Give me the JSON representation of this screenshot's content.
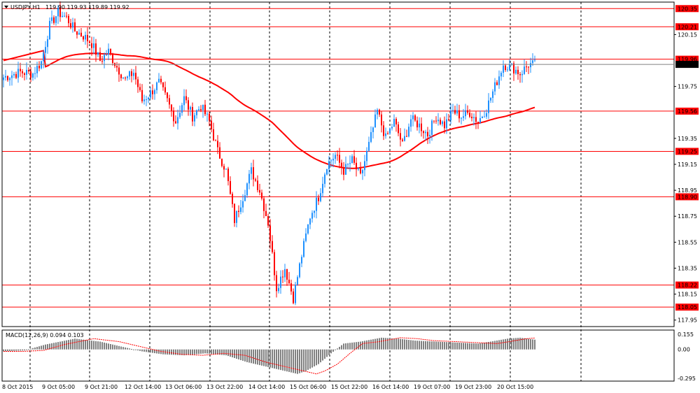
{
  "chart_data": {
    "type": "candlestick",
    "symbol_label": "USDJPY,H1",
    "ohlc_header": "119.90 119.93 119.89 119.92",
    "price_axis": {
      "min": 117.9,
      "max": 120.4,
      "ticks": [
        "120.15",
        "119.75",
        "119.35",
        "119.15",
        "118.95",
        "118.75",
        "118.55",
        "118.35",
        "118.15",
        "117.95"
      ]
    },
    "hlines": [
      {
        "value": 120.35,
        "label": "120.35",
        "color": "#ff0000"
      },
      {
        "value": 120.21,
        "label": "120.21",
        "color": "#ff0000"
      },
      {
        "value": 119.96,
        "label": "119.96",
        "color": "#ff0000"
      },
      {
        "value": 119.56,
        "label": "119.56",
        "color": "#ff0000"
      },
      {
        "value": 119.25,
        "label": "119.25",
        "color": "#ff0000"
      },
      {
        "value": 118.9,
        "label": "118.90",
        "color": "#ff0000"
      },
      {
        "value": 118.22,
        "label": "118.22",
        "color": "#ff0000"
      },
      {
        "value": 118.05,
        "label": "118.05",
        "color": "#ff0000"
      }
    ],
    "current_price": {
      "value": 119.92,
      "label": "119.92"
    },
    "x_labels": [
      "8 Oct 2015",
      "9 Oct 05:00",
      "9 Oct 21:00",
      "12 Oct 14:00",
      "13 Oct 06:00",
      "13 Oct 22:00",
      "14 Oct 14:00",
      "15 Oct 06:00",
      "15 Oct 22:00",
      "16 Oct 14:00",
      "19 Oct 07:00",
      "19 Oct 23:00",
      "20 Oct 15:00"
    ],
    "bull_color": "#1e90ff",
    "bear_color": "#ff0000",
    "ma_color": "#ff0000",
    "keypoints": [
      [
        0,
        119.82
      ],
      [
        8,
        119.86
      ],
      [
        14,
        119.85
      ],
      [
        18,
        119.94
      ],
      [
        22,
        120.22
      ],
      [
        26,
        120.32
      ],
      [
        30,
        120.28
      ],
      [
        34,
        120.18
      ],
      [
        38,
        120.14
      ],
      [
        42,
        120.08
      ],
      [
        46,
        119.95
      ],
      [
        50,
        120.02
      ],
      [
        54,
        119.9
      ],
      [
        58,
        119.8
      ],
      [
        62,
        119.86
      ],
      [
        66,
        119.64
      ],
      [
        70,
        119.7
      ],
      [
        74,
        119.78
      ],
      [
        78,
        119.64
      ],
      [
        82,
        119.48
      ],
      [
        86,
        119.66
      ],
      [
        90,
        119.52
      ],
      [
        94,
        119.6
      ],
      [
        98,
        119.48
      ],
      [
        102,
        119.25
      ],
      [
        106,
        119.1
      ],
      [
        110,
        118.72
      ],
      [
        114,
        118.9
      ],
      [
        118,
        119.1
      ],
      [
        122,
        118.95
      ],
      [
        126,
        118.7
      ],
      [
        130,
        118.2
      ],
      [
        134,
        118.35
      ],
      [
        138,
        118.12
      ],
      [
        142,
        118.45
      ],
      [
        146,
        118.75
      ],
      [
        150,
        118.9
      ],
      [
        154,
        119.15
      ],
      [
        158,
        119.22
      ],
      [
        162,
        119.1
      ],
      [
        166,
        119.18
      ],
      [
        170,
        119.05
      ],
      [
        174,
        119.3
      ],
      [
        178,
        119.56
      ],
      [
        182,
        119.35
      ],
      [
        186,
        119.48
      ],
      [
        190,
        119.3
      ],
      [
        194,
        119.5
      ],
      [
        198,
        119.45
      ],
      [
        202,
        119.38
      ],
      [
        206,
        119.52
      ],
      [
        210,
        119.45
      ],
      [
        214,
        119.56
      ],
      [
        218,
        119.52
      ],
      [
        222,
        119.55
      ],
      [
        226,
        119.48
      ],
      [
        230,
        119.58
      ],
      [
        234,
        119.75
      ],
      [
        238,
        119.92
      ],
      [
        242,
        119.9
      ],
      [
        246,
        119.85
      ],
      [
        250,
        119.92
      ],
      [
        253,
        119.92
      ]
    ],
    "macd": {
      "label": "MACD(12,26,9) 0.094 0.103",
      "min": -0.295,
      "max": 0.155,
      "ticks": [
        "0.155",
        "0.00",
        "-0.295"
      ],
      "keypoints": [
        [
          0,
          -0.02
        ],
        [
          10,
          -0.01
        ],
        [
          20,
          0.05
        ],
        [
          34,
          0.11
        ],
        [
          46,
          0.08
        ],
        [
          58,
          0.02
        ],
        [
          66,
          -0.02
        ],
        [
          76,
          -0.05
        ],
        [
          86,
          -0.06
        ],
        [
          96,
          -0.04
        ],
        [
          106,
          -0.06
        ],
        [
          116,
          -0.13
        ],
        [
          126,
          -0.18
        ],
        [
          134,
          -0.22
        ],
        [
          140,
          -0.25
        ],
        [
          144,
          -0.22
        ],
        [
          150,
          -0.15
        ],
        [
          156,
          -0.04
        ],
        [
          162,
          0.06
        ],
        [
          170,
          0.08
        ],
        [
          180,
          0.12
        ],
        [
          188,
          0.11
        ],
        [
          196,
          0.09
        ],
        [
          206,
          0.08
        ],
        [
          216,
          0.07
        ],
        [
          226,
          0.06
        ],
        [
          232,
          0.08
        ],
        [
          240,
          0.11
        ],
        [
          246,
          0.12
        ],
        [
          253,
          0.1
        ]
      ]
    }
  }
}
